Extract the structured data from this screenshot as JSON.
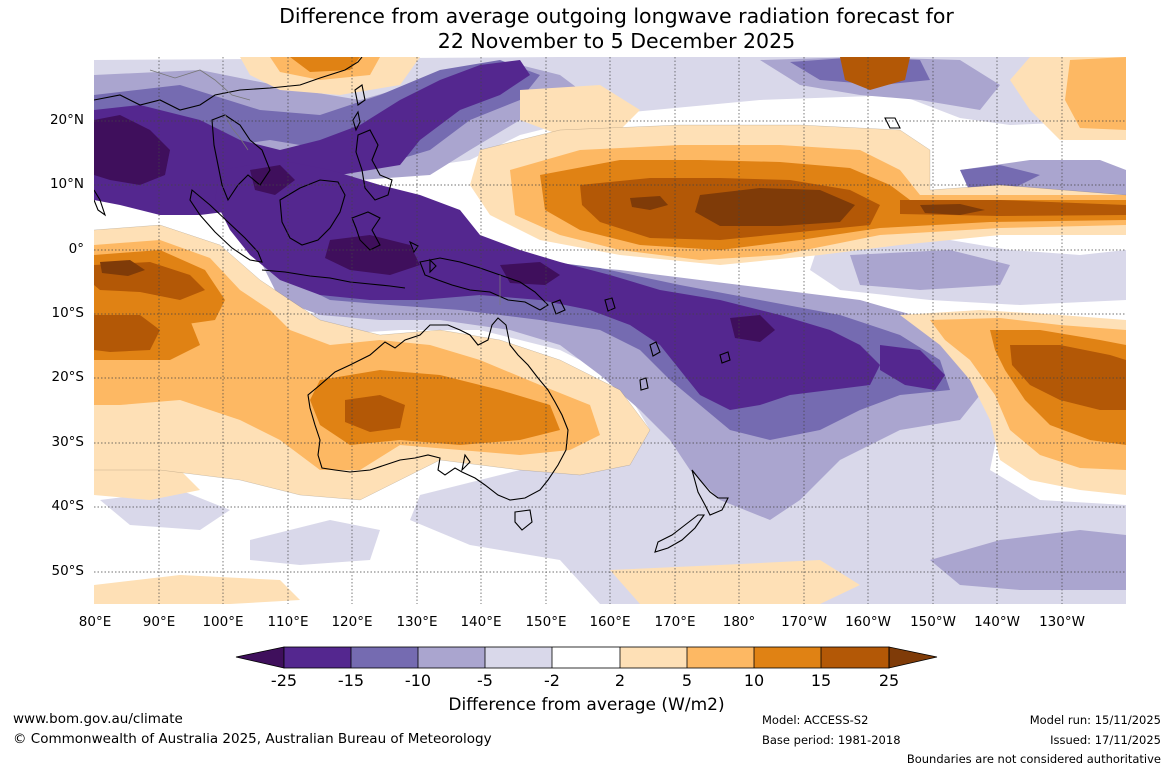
{
  "title": {
    "line1": "Difference from average outgoing longwave radiation forecast for",
    "line2": "22 November to 5 December 2025"
  },
  "map": {
    "region": "Australasia and western/central Pacific",
    "lat_labels": [
      "20°N",
      "10°N",
      "0°",
      "10°S",
      "20°S",
      "30°S",
      "40°S",
      "50°S"
    ],
    "lon_labels": [
      "80°E",
      "90°E",
      "100°E",
      "110°E",
      "120°E",
      "130°E",
      "140°E",
      "150°E",
      "160°E",
      "170°E",
      "180°",
      "170°W",
      "160°W",
      "150°W",
      "140°W",
      "130°W"
    ]
  },
  "colorbar": {
    "ticks": [
      "-25",
      "-15",
      "-10",
      "-5",
      "-2",
      "2",
      "5",
      "10",
      "15",
      "25"
    ],
    "colors": [
      "#3f0f5c",
      "#54278f",
      "#756bb1",
      "#aaa5cf",
      "#d9d8ea",
      "#ffffff",
      "#fee0b6",
      "#fdb863",
      "#e08214",
      "#b35806",
      "#7f3b08"
    ],
    "label": "Difference from average (W/m2)"
  },
  "footer": {
    "website": "www.bom.gov.au/climate",
    "copyright": "© Commonwealth of Australia 2025, Australian Bureau of Meteorology",
    "model": "Model: ACCESS-S2",
    "base_period": "Base period: 1981-2018",
    "model_run": "Model run: 15/11/2025",
    "issued": "Issued: 17/11/2025",
    "disclaimer": "Boundaries are not considered authoritative"
  }
}
